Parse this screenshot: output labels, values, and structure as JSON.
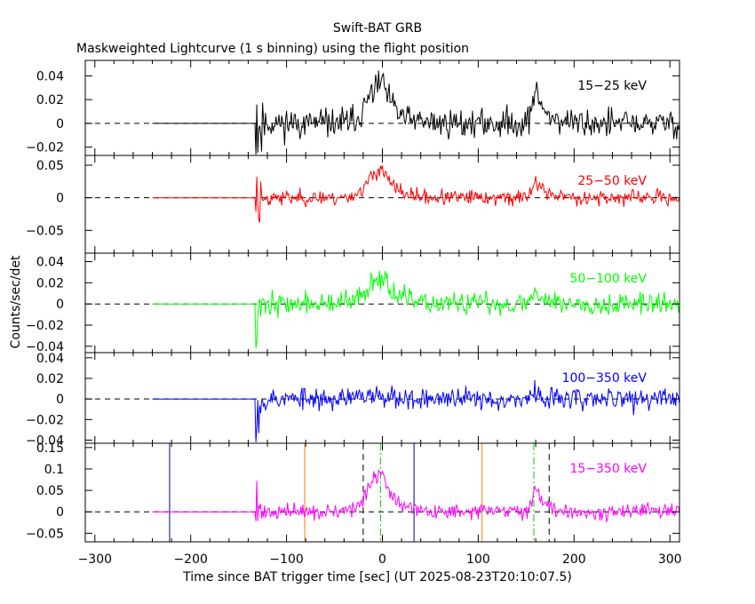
{
  "chart_data": {
    "type": "line",
    "title": "Swift-BAT GRB",
    "subtitle": "Maskweighted Lightcurve (1 s binning) using the flight position",
    "xlabel": "Time since BAT trigger time [sec] (UT 2025-08-23T20:10:07.5)",
    "ylabel": "Counts/sec/det",
    "xlim": [
      -310,
      310
    ],
    "xticks": [
      -300,
      -200,
      -100,
      0,
      100,
      200,
      300
    ],
    "xtick_labels": [
      "−300",
      "−200",
      "−100",
      "0",
      "100",
      "200",
      "300"
    ],
    "data_start": -240,
    "data_active_start": -132,
    "burst_peaks": [
      {
        "t": 0,
        "width": 12
      },
      {
        "t": 160,
        "width": 8
      }
    ],
    "panels": [
      {
        "name": "15-25 keV",
        "label": "15−25 keV",
        "color": "#000000",
        "ylim": [
          -0.027,
          0.053
        ],
        "yticks": [
          -0.02,
          0,
          0.02,
          0.04
        ],
        "ytick_labels": [
          "−0.02",
          "0",
          "0.02",
          "0.04"
        ],
        "noise": 0.0085,
        "spike": 0.03,
        "amp1": 0.035,
        "amp2": 0.026,
        "seed": 11
      },
      {
        "name": "25-50 keV",
        "label": "25−50 keV",
        "color": "#ff0000",
        "ylim": [
          -0.085,
          0.065
        ],
        "yticks": [
          -0.05,
          0,
          0.05
        ],
        "ytick_labels": [
          "−0.05",
          "0",
          "0.05"
        ],
        "noise": 0.008,
        "spike": 0.05,
        "amp1": 0.045,
        "amp2": 0.025,
        "seed": 23
      },
      {
        "name": "50-100 keV",
        "label": "50−100 keV",
        "color": "#00ff00",
        "ylim": [
          -0.046,
          0.048
        ],
        "yticks": [
          -0.04,
          -0.02,
          0,
          0.02,
          0.04
        ],
        "ytick_labels": [
          "−0.04",
          "−0.02",
          "0",
          "0.02",
          "0.04"
        ],
        "noise": 0.0075,
        "spike": 0.03,
        "amp1": 0.028,
        "amp2": 0.012,
        "seed": 37
      },
      {
        "name": "100-350 keV",
        "label": "100−350 keV",
        "color": "#0000ff",
        "ylim": [
          -0.043,
          0.045
        ],
        "yticks": [
          -0.04,
          -0.02,
          0,
          0.02,
          0.04
        ],
        "ytick_labels": [
          "−0.04",
          "−0.02",
          "0",
          "0.02",
          "0.04"
        ],
        "noise": 0.0075,
        "spike": 0.03,
        "amp1": 0.006,
        "amp2": 0.004,
        "seed": 53
      },
      {
        "name": "15-350 keV",
        "label": "15−350 keV",
        "color": "#ff00ff",
        "ylim": [
          -0.07,
          0.16
        ],
        "yticks": [
          -0.05,
          0,
          0.05,
          0.1,
          0.15
        ],
        "ytick_labels": [
          "−0.05",
          "0",
          "0.05",
          "0.1",
          "0.15"
        ],
        "noise": 0.012,
        "spike": 0.05,
        "amp1": 0.09,
        "amp2": 0.055,
        "seed": 71
      }
    ],
    "vertical_lines": [
      {
        "t": -222,
        "style": "solid",
        "color": "#000080"
      },
      {
        "t": -81,
        "style": "solid",
        "color": "#ff8000"
      },
      {
        "t": -20,
        "style": "dashed",
        "color": "#000000"
      },
      {
        "t": -2,
        "style": "dashdot",
        "color": "#00cc00"
      },
      {
        "t": 33,
        "style": "solid",
        "color": "#000080"
      },
      {
        "t": 104,
        "style": "solid",
        "color": "#ff8000"
      },
      {
        "t": 158,
        "style": "dashdot",
        "color": "#00cc00"
      },
      {
        "t": 174,
        "style": "dashed",
        "color": "#000000"
      }
    ]
  }
}
